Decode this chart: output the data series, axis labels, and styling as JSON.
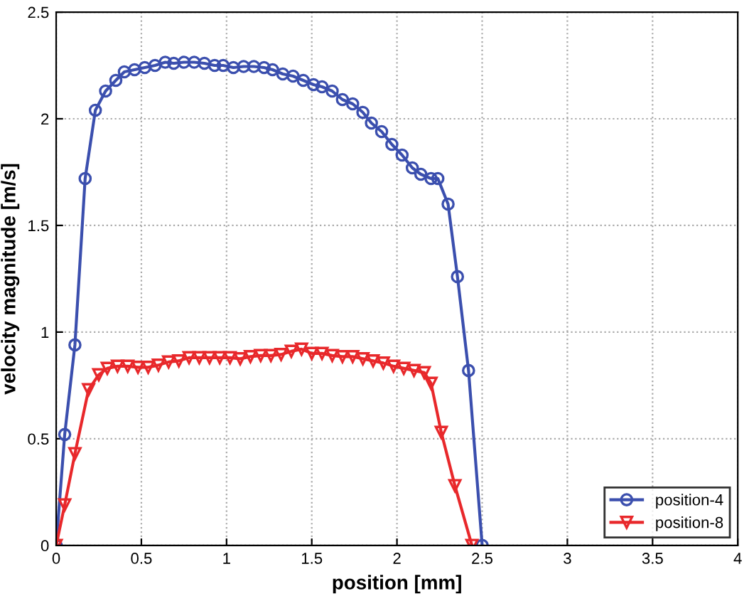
{
  "chart_data": {
    "type": "line",
    "xlabel": "position [mm]",
    "ylabel": "velocity magnitude [m/s]",
    "xlim": [
      0,
      4
    ],
    "ylim": [
      0,
      2.5
    ],
    "xticks": [
      0,
      0.5,
      1,
      1.5,
      2,
      2.5,
      3,
      3.5,
      4
    ],
    "yticks": [
      0,
      0.5,
      1,
      1.5,
      2,
      2.5
    ],
    "grid": true,
    "legend": "bottom right",
    "series": [
      {
        "name": "position-4",
        "color": "#3b4fae",
        "marker": "circle",
        "x": [
          0,
          0.05,
          0.11,
          0.17,
          0.23,
          0.29,
          0.35,
          0.4,
          0.46,
          0.52,
          0.58,
          0.64,
          0.69,
          0.75,
          0.81,
          0.87,
          0.93,
          0.98,
          1.04,
          1.1,
          1.16,
          1.22,
          1.27,
          1.33,
          1.39,
          1.45,
          1.51,
          1.56,
          1.62,
          1.68,
          1.74,
          1.8,
          1.85,
          1.91,
          1.97,
          2.03,
          2.09,
          2.14,
          2.2,
          2.24,
          2.3,
          2.355,
          2.42,
          2.5
        ],
        "values": [
          0,
          0.52,
          0.94,
          1.72,
          2.04,
          2.13,
          2.18,
          2.22,
          2.23,
          2.24,
          2.25,
          2.265,
          2.26,
          2.265,
          2.265,
          2.26,
          2.25,
          2.25,
          2.24,
          2.245,
          2.245,
          2.24,
          2.23,
          2.21,
          2.2,
          2.18,
          2.16,
          2.15,
          2.13,
          2.09,
          2.07,
          2.03,
          1.98,
          1.94,
          1.88,
          1.83,
          1.77,
          1.74,
          1.72,
          1.72,
          1.6,
          1.26,
          0.82,
          0
        ]
      },
      {
        "name": "position-8",
        "color": "#e8282b",
        "marker": "triangle",
        "x": [
          0,
          0.05,
          0.11,
          0.19,
          0.25,
          0.3,
          0.36,
          0.42,
          0.48,
          0.54,
          0.6,
          0.66,
          0.72,
          0.78,
          0.84,
          0.9,
          0.96,
          1.02,
          1.08,
          1.14,
          1.2,
          1.26,
          1.32,
          1.38,
          1.44,
          1.5,
          1.56,
          1.62,
          1.68,
          1.74,
          1.8,
          1.86,
          1.92,
          1.98,
          2.04,
          2.1,
          2.16,
          2.2,
          2.26,
          2.34,
          2.44
        ],
        "values": [
          0,
          0.19,
          0.43,
          0.73,
          0.8,
          0.83,
          0.84,
          0.84,
          0.835,
          0.835,
          0.845,
          0.86,
          0.865,
          0.88,
          0.88,
          0.88,
          0.88,
          0.88,
          0.875,
          0.885,
          0.89,
          0.89,
          0.895,
          0.91,
          0.92,
          0.9,
          0.9,
          0.89,
          0.885,
          0.885,
          0.875,
          0.865,
          0.855,
          0.84,
          0.83,
          0.82,
          0.81,
          0.76,
          0.53,
          0.28,
          0
        ]
      }
    ]
  }
}
